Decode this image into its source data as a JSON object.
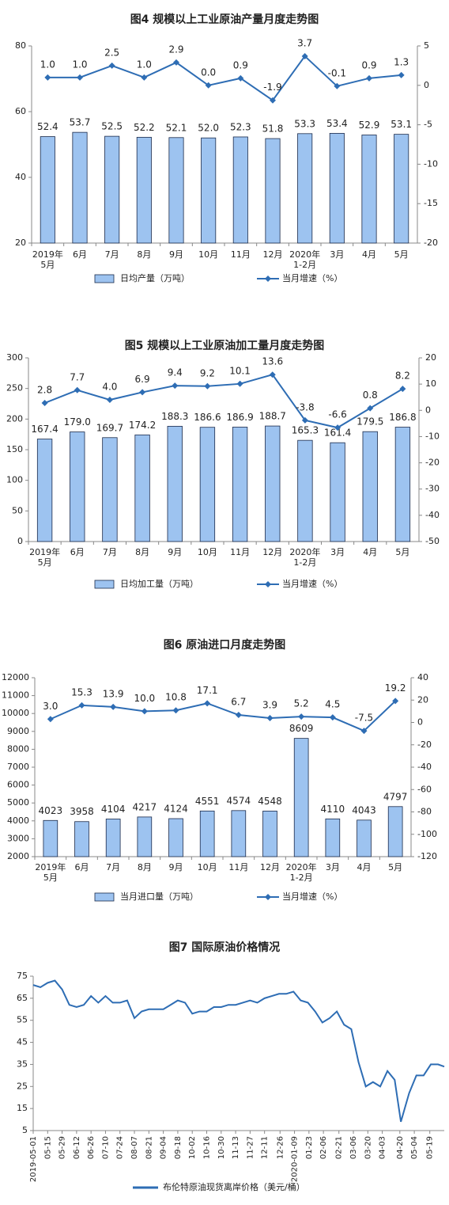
{
  "chart_data": [
    {
      "type": "bar_line",
      "title": "图4  规模以上工业原油产量月度走势图",
      "categories": [
        "2019年\n5月",
        "6月",
        "7月",
        "8月",
        "9月",
        "10月",
        "11月",
        "12月",
        "2020年\n1-2月",
        "3月",
        "4月",
        "5月"
      ],
      "series": [
        {
          "name": "日均产量（万吨）",
          "type": "bar",
          "color": "#9dc3f0",
          "values": [
            52.4,
            53.7,
            52.5,
            52.2,
            52.1,
            52.0,
            52.3,
            51.8,
            53.3,
            53.4,
            52.9,
            53.1
          ],
          "value_labels": [
            "52.4",
            "53.7",
            "52.5",
            "52.2",
            "52.1",
            "52.0",
            "52.3",
            "51.8",
            "53.3",
            "53.4",
            "52.9",
            "53.1"
          ]
        },
        {
          "name": "当月增速（%）",
          "type": "line",
          "axis": "y2",
          "color": "#2e6db4",
          "values": [
            1.0,
            1.0,
            2.5,
            1.0,
            2.9,
            0.0,
            0.9,
            -1.9,
            3.7,
            -0.1,
            0.9,
            1.3
          ],
          "value_labels": [
            "1.0",
            "1.0",
            "2.5",
            "1.0",
            "2.9",
            "0.0",
            "0.9",
            "-1.9",
            "3.7",
            "-0.1",
            "0.9",
            "1.3"
          ]
        }
      ],
      "ylim": [
        20,
        80
      ],
      "yticks": [
        20,
        40,
        60,
        80
      ],
      "y2lim": [
        -20,
        5
      ],
      "y2ticks": [
        -20,
        -15,
        -10,
        -5,
        0,
        5
      ]
    },
    {
      "type": "bar_line",
      "title": "图5  规模以上工业原油加工量月度走势图",
      "categories": [
        "2019年\n5月",
        "6月",
        "7月",
        "8月",
        "9月",
        "10月",
        "11月",
        "12月",
        "2020年\n1-2月",
        "3月",
        "4月",
        "5月"
      ],
      "series": [
        {
          "name": "日均加工量（万吨）",
          "type": "bar",
          "color": "#9dc3f0",
          "values": [
            167.4,
            179.0,
            169.7,
            174.2,
            188.3,
            186.6,
            186.9,
            188.7,
            165.3,
            161.4,
            179.5,
            186.8
          ],
          "value_labels": [
            "167.4",
            "179.0",
            "169.7",
            "174.2",
            "188.3",
            "186.6",
            "186.9",
            "188.7",
            "165.3",
            "161.4",
            "179.5",
            "186.8"
          ]
        },
        {
          "name": "当月增速（%）",
          "type": "line",
          "axis": "y2",
          "color": "#2e6db4",
          "values": [
            2.8,
            7.7,
            4.0,
            6.9,
            9.4,
            9.2,
            10.1,
            13.6,
            -3.8,
            -6.6,
            0.8,
            8.2
          ],
          "value_labels": [
            "2.8",
            "7.7",
            "4.0",
            "6.9",
            "9.4",
            "9.2",
            "10.1",
            "13.6",
            "-3.8",
            "-6.6",
            "0.8",
            "8.2"
          ]
        }
      ],
      "ylim": [
        0,
        300
      ],
      "yticks": [
        0,
        50,
        100,
        150,
        200,
        250,
        300
      ],
      "y2lim": [
        -50,
        20
      ],
      "y2ticks": [
        -50,
        -40,
        -30,
        -20,
        -10,
        0,
        10,
        20
      ]
    },
    {
      "type": "bar_line",
      "title": "图6  原油进口月度走势图",
      "categories": [
        "2019年\n5月",
        "6月",
        "7月",
        "8月",
        "9月",
        "10月",
        "11月",
        "12月",
        "2020年\n1-2月",
        "3月",
        "4月",
        "5月"
      ],
      "series": [
        {
          "name": "当月进口量（万吨）",
          "type": "bar",
          "color": "#9dc3f0",
          "values": [
            4023,
            3958,
            4104,
            4217,
            4124,
            4551,
            4574,
            4548,
            8609,
            4110,
            4043,
            4797
          ]
        },
        {
          "name": "当月增速（%）",
          "type": "line",
          "axis": "y2",
          "color": "#2e6db4",
          "values": [
            3.0,
            15.3,
            13.9,
            10.0,
            10.8,
            17.1,
            6.7,
            3.9,
            5.2,
            4.5,
            -7.5,
            19.2
          ],
          "value_labels": [
            "3.0",
            "15.3",
            "13.9",
            "10.0",
            "10.8",
            "17.1",
            "6.7",
            "3.9",
            "5.2",
            "4.5",
            "-7.5",
            "19.2"
          ]
        }
      ],
      "ylim": [
        2000,
        12000
      ],
      "yticks": [
        2000,
        3000,
        4000,
        5000,
        6000,
        7000,
        8000,
        9000,
        10000,
        11000,
        12000
      ],
      "y2lim": [
        -120,
        40
      ],
      "y2ticks": [
        -120,
        -100,
        -80,
        -60,
        -40,
        -20,
        0,
        20,
        40
      ]
    },
    {
      "type": "line",
      "title": "图7  国际原油价格情况",
      "x": [
        "2019-05-01",
        "2019-05-08",
        "2019-05-15",
        "2019-05-22",
        "2019-05-29",
        "2019-06-05",
        "2019-06-12",
        "2019-06-19",
        "2019-06-26",
        "2019-07-03",
        "2019-07-10",
        "2019-07-17",
        "2019-07-24",
        "2019-07-31",
        "2019-08-07",
        "2019-08-14",
        "2019-08-21",
        "2019-08-28",
        "2019-09-04",
        "2019-09-11",
        "2019-09-18",
        "2019-09-25",
        "2019-10-02",
        "2019-10-09",
        "2019-10-16",
        "2019-10-23",
        "2019-10-30",
        "2019-11-06",
        "2019-11-13",
        "2019-11-20",
        "2019-11-27",
        "2019-12-04",
        "2019-12-11",
        "2019-12-18",
        "2019-12-25",
        "2020-01-01",
        "2020-01-08",
        "2020-01-15",
        "2020-01-22",
        "2020-01-29",
        "2020-02-05",
        "2020-02-12",
        "2020-02-19",
        "2020-02-26",
        "2020-03-04",
        "2020-03-11",
        "2020-03-18",
        "2020-03-25",
        "2020-04-01",
        "2020-04-08",
        "2020-04-15",
        "2020-04-21",
        "2020-04-29",
        "2020-05-06",
        "2020-05-13",
        "2020-05-20",
        "2020-05-27",
        "2020-06-02"
      ],
      "series": [
        {
          "name": "布伦特原油现货离岸价格（美元/桶）",
          "color": "#2e6db4",
          "values": [
            71,
            70,
            72,
            73,
            69,
            62,
            61,
            62,
            66,
            63,
            66,
            63,
            63,
            64,
            56,
            59,
            60,
            60,
            60,
            62,
            64,
            63,
            58,
            59,
            59,
            61,
            61,
            62,
            62,
            63,
            64,
            63,
            65,
            66,
            67,
            67,
            68,
            64,
            63,
            59,
            54,
            56,
            59,
            53,
            51,
            36,
            25,
            27,
            25,
            32,
            28,
            9,
            22,
            30,
            30,
            35,
            35,
            34
          ]
        }
      ],
      "xlim": [
        "2019-05-01",
        "2020-06-02"
      ],
      "xticks": [
        {
          "value": "2019-05-01",
          "label": "2019-05-01"
        },
        {
          "value": "2019-05-15",
          "label": "05-15"
        },
        {
          "value": "2019-05-29",
          "label": "05-29"
        },
        {
          "value": "2019-06-12",
          "label": "06-12"
        },
        {
          "value": "2019-06-26",
          "label": "06-26"
        },
        {
          "value": "2019-07-10",
          "label": "07-10"
        },
        {
          "value": "2019-07-24",
          "label": "07-24"
        },
        {
          "value": "2019-08-07",
          "label": "08-07"
        },
        {
          "value": "2019-08-21",
          "label": "08-21"
        },
        {
          "value": "2019-09-04",
          "label": "09-04"
        },
        {
          "value": "2019-09-18",
          "label": "09-18"
        },
        {
          "value": "2019-10-02",
          "label": "10-02"
        },
        {
          "value": "2019-10-16",
          "label": "10-16"
        },
        {
          "value": "2019-10-30",
          "label": "10-30"
        },
        {
          "value": "2019-11-13",
          "label": "11-13"
        },
        {
          "value": "2019-11-27",
          "label": "11-27"
        },
        {
          "value": "2019-12-11",
          "label": "12-11"
        },
        {
          "value": "2019-12-26",
          "label": "12-26"
        },
        {
          "value": "2020-01-09",
          "label": "2020-01-09"
        },
        {
          "value": "2020-01-23",
          "label": "01-23"
        },
        {
          "value": "2020-02-06",
          "label": "02-06"
        },
        {
          "value": "2020-02-21",
          "label": "02-21"
        },
        {
          "value": "2020-03-06",
          "label": "03-06"
        },
        {
          "value": "2020-03-20",
          "label": "03-20"
        },
        {
          "value": "2020-04-03",
          "label": "04-03"
        },
        {
          "value": "2020-04-20",
          "label": "04-20"
        },
        {
          "value": "2020-05-04",
          "label": "05-04"
        },
        {
          "value": "2020-05-19",
          "label": "05-19"
        }
      ],
      "ylim": [
        5,
        75
      ],
      "yticks": [
        5,
        15,
        25,
        35,
        45,
        55,
        65,
        75
      ]
    }
  ]
}
